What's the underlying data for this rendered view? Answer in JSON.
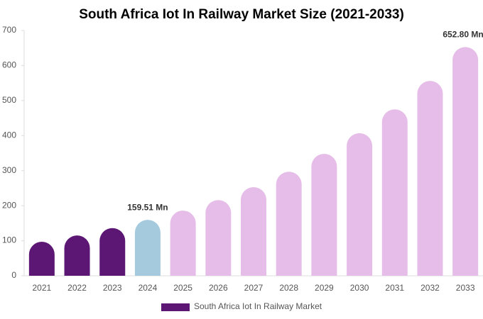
{
  "chart_data": {
    "type": "bar",
    "title": "South Africa Iot In Railway Market Size (2021-2033)",
    "categories": [
      "2021",
      "2022",
      "2023",
      "2024",
      "2025",
      "2026",
      "2027",
      "2028",
      "2029",
      "2030",
      "2031",
      "2032",
      "2033"
    ],
    "series": [
      {
        "name": "South Africa Iot In Railway Market",
        "color": "#5b1773",
        "values": [
          97,
          115,
          136,
          159.51,
          186,
          216,
          253,
          297,
          348,
          407,
          475,
          556,
          652.8
        ],
        "value_labels": [
          null,
          null,
          null,
          "159.51 Mn",
          null,
          null,
          null,
          null,
          null,
          null,
          null,
          null,
          "652.80 Mn"
        ],
        "bar_colors": [
          "#5b1773",
          "#5b1773",
          "#5b1773",
          "#a5cadd",
          "#e6bde8",
          "#e6bde8",
          "#e6bde8",
          "#e6bde8",
          "#e6bde8",
          "#e6bde8",
          "#e6bde8",
          "#e6bde8",
          "#e6bde8"
        ]
      }
    ],
    "ylim": [
      0,
      700
    ],
    "yticks": [
      0,
      100,
      200,
      300,
      400,
      500,
      600,
      700
    ],
    "grid": false,
    "legend": "bottom"
  }
}
